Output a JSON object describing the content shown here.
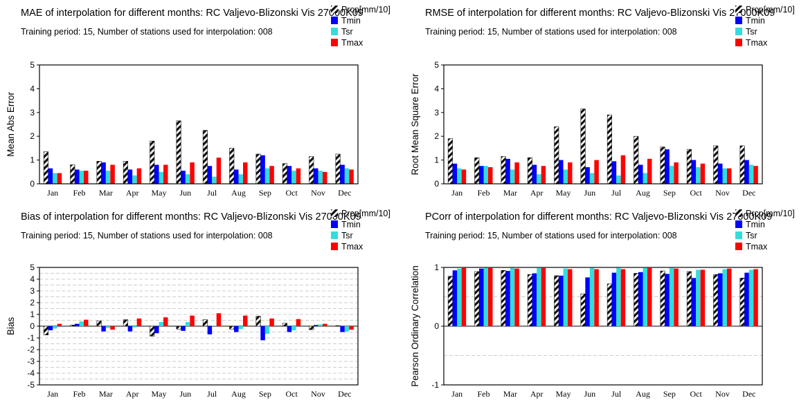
{
  "colors": {
    "Prcp": "#111111",
    "Tmin": "#0000ff",
    "Tsr": "#33dddd",
    "Tmax": "#ff0000"
  },
  "chart_data": [
    {
      "type": "bar",
      "title": "MAE of interpolation for different months: RC Valjevo-Blizonski Vis  27000K09",
      "subtitle": "Training period: 15, Number of stations used for interpolation: 008",
      "ylabel": "Mean Abs Error",
      "ylim": [
        0,
        5
      ],
      "yticks": [
        "0",
        "1",
        "2",
        "3",
        "4",
        "5"
      ],
      "grid": false,
      "legend": "top-right",
      "categories": [
        "Jan",
        "Feb",
        "Mar",
        "Apr",
        "May",
        "Jun",
        "Jul",
        "Aug",
        "Sep",
        "Oct",
        "Nov",
        "Dec"
      ],
      "series": [
        {
          "name": "Prcp[mm/10]",
          "values": [
            1.35,
            0.8,
            0.95,
            0.95,
            1.8,
            2.65,
            2.25,
            1.5,
            1.25,
            0.85,
            1.15,
            1.25
          ]
        },
        {
          "name": "Tmin",
          "values": [
            0.65,
            0.6,
            0.9,
            0.6,
            0.8,
            0.55,
            0.75,
            0.6,
            1.2,
            0.75,
            0.65,
            0.8
          ]
        },
        {
          "name": "Tsr",
          "values": [
            0.45,
            0.55,
            0.55,
            0.35,
            0.5,
            0.4,
            0.3,
            0.4,
            0.65,
            0.55,
            0.55,
            0.65
          ]
        },
        {
          "name": "Tmax",
          "values": [
            0.45,
            0.55,
            0.8,
            0.65,
            0.8,
            0.9,
            1.1,
            0.9,
            0.75,
            0.65,
            0.5,
            0.6
          ]
        }
      ]
    },
    {
      "type": "bar",
      "title": "RMSE of interpolation for different months: RC Valjevo-Blizonski Vis  27000K09",
      "subtitle": "Training period: 15, Number of stations used for interpolation: 008",
      "ylabel": "Root Mean Square Error",
      "ylim": [
        0,
        5
      ],
      "yticks": [
        "0",
        "1",
        "2",
        "3",
        "4",
        "5"
      ],
      "grid": false,
      "legend": "top-right",
      "categories": [
        "Jan",
        "Feb",
        "Mar",
        "Apr",
        "May",
        "Jun",
        "Jul",
        "Aug",
        "Sep",
        "Oct",
        "Nov",
        "Dec"
      ],
      "series": [
        {
          "name": "Prcp[mm/10]",
          "values": [
            1.9,
            1.1,
            1.15,
            1.1,
            2.4,
            3.15,
            2.9,
            2.0,
            1.55,
            1.45,
            1.6,
            1.6
          ]
        },
        {
          "name": "Tmin",
          "values": [
            0.85,
            0.75,
            1.05,
            0.8,
            1.0,
            0.7,
            0.95,
            0.8,
            1.45,
            1.0,
            0.85,
            1.0
          ]
        },
        {
          "name": "Tsr",
          "values": [
            0.65,
            0.75,
            0.6,
            0.4,
            0.6,
            0.45,
            0.35,
            0.45,
            0.75,
            0.7,
            0.65,
            0.8
          ]
        },
        {
          "name": "Tmax",
          "values": [
            0.6,
            0.7,
            0.9,
            0.75,
            0.9,
            1.0,
            1.2,
            1.05,
            0.9,
            0.85,
            0.65,
            0.75
          ]
        }
      ]
    },
    {
      "type": "bar",
      "title": "Bias of interpolation for different months: RC Valjevo-Blizonski Vis  27000K09",
      "subtitle": "Training period: 15, Number of stations used for interpolation: 008",
      "ylabel": "Bias",
      "ylim": [
        -5,
        5
      ],
      "yticks": [
        "-5",
        "-4",
        "-3",
        "-2",
        "-1",
        "0",
        "1",
        "2",
        "3",
        "4",
        "5"
      ],
      "grid": true,
      "legend": "top-right",
      "categories": [
        "Jan",
        "Feb",
        "Mar",
        "Apr",
        "May",
        "Jun",
        "Jul",
        "Aug",
        "Sep",
        "Oct",
        "Nov",
        "Dec"
      ],
      "series": [
        {
          "name": "Prcp[mm/10]",
          "values": [
            -0.75,
            0.1,
            0.45,
            0.55,
            -0.85,
            -0.25,
            0.55,
            -0.25,
            0.85,
            0.25,
            -0.3,
            0.05
          ]
        },
        {
          "name": "Tmin",
          "values": [
            -0.35,
            0.2,
            -0.45,
            -0.45,
            -0.6,
            -0.4,
            -0.7,
            -0.5,
            -1.2,
            -0.5,
            0.1,
            -0.5
          ]
        },
        {
          "name": "Tsr",
          "values": [
            -0.2,
            0.4,
            -0.15,
            -0.1,
            0.35,
            0.35,
            0.05,
            -0.25,
            -0.65,
            -0.35,
            0.15,
            -0.45
          ]
        },
        {
          "name": "Tmax",
          "values": [
            0.2,
            0.55,
            -0.3,
            0.65,
            0.75,
            0.9,
            1.1,
            0.9,
            0.65,
            0.6,
            0.2,
            -0.3
          ]
        }
      ]
    },
    {
      "type": "bar",
      "title": "PCorr of interpolation for different months: RC Valjevo-Blizonski Vis  27000K09",
      "subtitle": "Training period: 15, Number of stations used for interpolation: 008",
      "ylabel": "Pearson Ordinary Correlation",
      "ylim": [
        -1,
        1
      ],
      "yticks": [
        "-1",
        "0",
        "1"
      ],
      "grid": true,
      "legend": "top-right",
      "categories": [
        "Jan",
        "Feb",
        "Mar",
        "Apr",
        "May",
        "Jun",
        "Jul",
        "Aug",
        "Sep",
        "Oct",
        "Nov",
        "Dec"
      ],
      "series": [
        {
          "name": "Prcp[mm/10]",
          "values": [
            0.85,
            0.93,
            0.95,
            0.88,
            0.86,
            0.55,
            0.72,
            0.9,
            0.94,
            0.93,
            0.88,
            0.82
          ]
        },
        {
          "name": "Tmin",
          "values": [
            0.95,
            0.98,
            0.94,
            0.9,
            0.86,
            0.83,
            0.91,
            0.92,
            0.89,
            0.82,
            0.9,
            0.91
          ]
        },
        {
          "name": "Tsr",
          "values": [
            0.98,
            0.99,
            0.99,
            0.99,
            0.98,
            0.99,
            0.99,
            0.99,
            0.99,
            0.96,
            0.97,
            0.96
          ]
        },
        {
          "name": "Tmax",
          "values": [
            0.99,
            0.99,
            0.98,
            0.99,
            0.97,
            0.97,
            0.97,
            0.99,
            0.98,
            0.96,
            0.98,
            0.97
          ]
        }
      ]
    }
  ]
}
